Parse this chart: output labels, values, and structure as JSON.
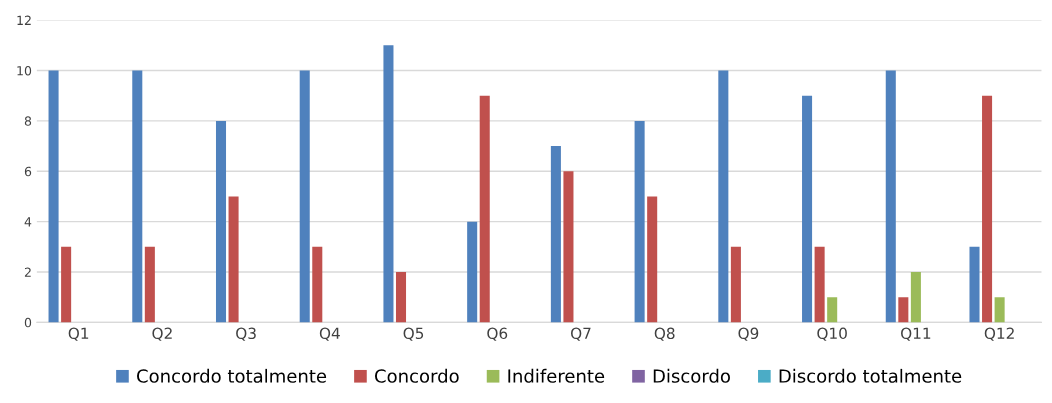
{
  "chart_data": {
    "type": "bar",
    "categories": [
      "Q1",
      "Q2",
      "Q3",
      "Q4",
      "Q5",
      "Q6",
      "Q7",
      "Q8",
      "Q9",
      "Q10",
      "Q11",
      "Q12"
    ],
    "series": [
      {
        "name": "Concordo totalmente",
        "color": "#4f81bd",
        "values": [
          10,
          10,
          8,
          10,
          11,
          4,
          7,
          8,
          10,
          9,
          10,
          3
        ]
      },
      {
        "name": "Concordo",
        "color": "#c0504d",
        "values": [
          3,
          3,
          5,
          3,
          2,
          9,
          6,
          5,
          3,
          3,
          1,
          9
        ]
      },
      {
        "name": "Indiferente",
        "color": "#9bbb59",
        "values": [
          0,
          0,
          0,
          0,
          0,
          0,
          0,
          0,
          0,
          1,
          2,
          1
        ]
      },
      {
        "name": "Discordo",
        "color": "#8064a2",
        "values": [
          0,
          0,
          0,
          0,
          0,
          0,
          0,
          0,
          0,
          0,
          0,
          0
        ]
      },
      {
        "name": "Discordo totalmente",
        "color": "#4bacc6",
        "values": [
          0,
          0,
          0,
          0,
          0,
          0,
          0,
          0,
          0,
          0,
          0,
          0
        ]
      }
    ],
    "ylim": [
      0,
      12
    ],
    "yticks": [
      0,
      2,
      4,
      6,
      8,
      10,
      12
    ],
    "grid": "y",
    "legend": "bottom"
  }
}
